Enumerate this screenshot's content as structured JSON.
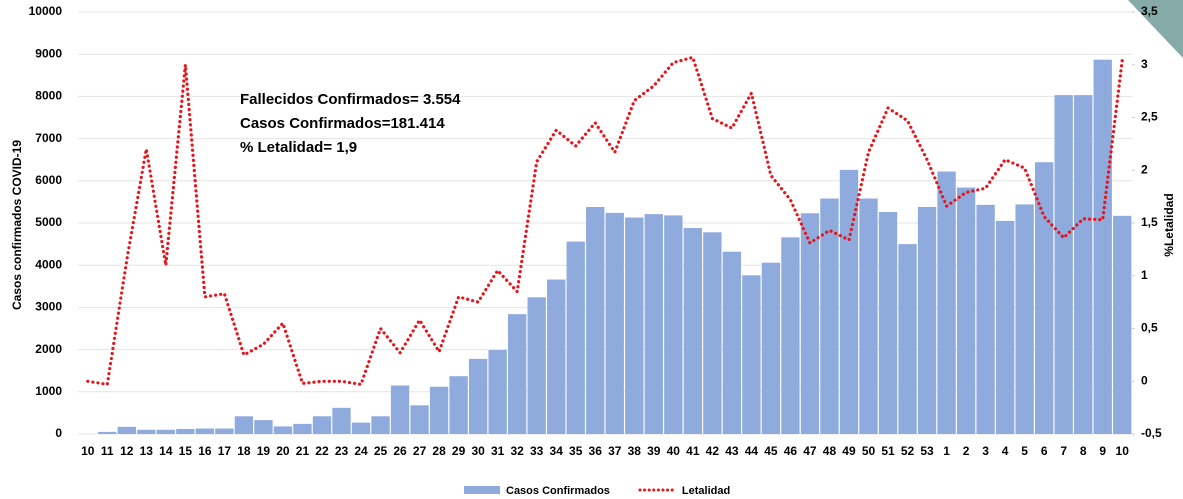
{
  "chart_data": {
    "type": "bar",
    "annotations": [
      "Fallecidos Confirmados= 3.554",
      "Casos Confirmados=181.414",
      "% Letalidad= 1,9"
    ],
    "ylabel": "Casos confirmados COVID-19",
    "y2label": "%Letalidad",
    "categories": [
      "10",
      "11",
      "12",
      "13",
      "14",
      "15",
      "16",
      "17",
      "18",
      "19",
      "20",
      "21",
      "22",
      "23",
      "24",
      "25",
      "26",
      "27",
      "28",
      "29",
      "30",
      "31",
      "32",
      "33",
      "34",
      "35",
      "36",
      "37",
      "38",
      "39",
      "40",
      "41",
      "42",
      "43",
      "44",
      "45",
      "46",
      "47",
      "48",
      "49",
      "50",
      "51",
      "52",
      "53",
      "1",
      "2",
      "3",
      "4",
      "5",
      "6",
      "7",
      "8",
      "9",
      "10"
    ],
    "series": [
      {
        "name": "Casos Confirmados",
        "type": "bar",
        "color": "#8faadc",
        "values": [
          0,
          50,
          170,
          100,
          100,
          120,
          130,
          130,
          420,
          330,
          180,
          240,
          420,
          620,
          270,
          420,
          1150,
          680,
          1120,
          1370,
          1780,
          1990,
          2840,
          3240,
          3660,
          4560,
          5380,
          5240,
          5130,
          5210,
          5180,
          4880,
          4780,
          4320,
          3760,
          4060,
          4660,
          5230,
          5580,
          6260,
          5580,
          5260,
          4500,
          5380,
          6220,
          5840,
          5430,
          5050,
          5440,
          6440,
          8030,
          8030,
          8870,
          5170
        ]
      },
      {
        "name": "Letalidad",
        "type": "line",
        "axis": "y2",
        "color": "#e8141c",
        "values": [
          0,
          -0.03,
          1.15,
          2.2,
          1.1,
          3.0,
          0.8,
          0.83,
          0.25,
          0.35,
          0.55,
          -0.02,
          0,
          0,
          -0.03,
          0.5,
          0.27,
          0.58,
          0.28,
          0.8,
          0.75,
          1.05,
          0.85,
          2.08,
          2.38,
          2.23,
          2.45,
          2.17,
          2.66,
          2.8,
          3.02,
          3.07,
          2.49,
          2.4,
          2.73,
          1.95,
          1.72,
          1.31,
          1.43,
          1.34,
          2.17,
          2.59,
          2.47,
          2.1,
          1.66,
          1.79,
          1.83,
          2.1,
          2.02,
          1.56,
          1.36,
          1.54,
          1.53,
          3.04
        ]
      }
    ],
    "ylim": [
      0,
      10000
    ],
    "yticks": [
      0,
      1000,
      2000,
      3000,
      4000,
      5000,
      6000,
      7000,
      8000,
      9000,
      10000
    ],
    "y2lim": [
      -0.5,
      3.5
    ],
    "y2ticks": [
      {
        "value": -0.5,
        "label": "-0,5"
      },
      0,
      {
        "value": 0.5,
        "label": "0,5"
      },
      1,
      {
        "value": 1.5,
        "label": "1,5"
      },
      2,
      {
        "value": 2.5,
        "label": "2,5"
      },
      3,
      {
        "value": 3.5,
        "label": "3,5"
      }
    ],
    "grid": true
  }
}
